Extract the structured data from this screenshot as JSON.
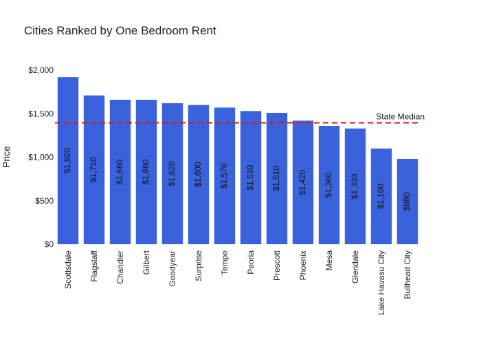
{
  "chart_data": {
    "type": "bar",
    "title": "Cities Ranked by One Bedroom Rent",
    "xlabel": "",
    "ylabel": "Price",
    "categories": [
      "Scottsdale",
      "Flagstaff",
      "Chandler",
      "Gilbert",
      "Goodyear",
      "Surprise",
      "Tempe",
      "Peoria",
      "Prescott",
      "Phoenix",
      "Mesa",
      "Glendale",
      "Lake Havasu City",
      "Bullhead City"
    ],
    "values": [
      1920,
      1710,
      1660,
      1660,
      1620,
      1600,
      1570,
      1530,
      1510,
      1420,
      1360,
      1330,
      1100,
      980
    ],
    "value_labels": [
      "$1,920",
      "$1,710",
      "$1,660",
      "$1,660",
      "$1,620",
      "$1,600",
      "$1,570",
      "$1,530",
      "$1,510",
      "$1,420",
      "$1,360",
      "$1,330",
      "$1,100",
      "$980"
    ],
    "ylim": [
      0,
      2000
    ],
    "yticks": [
      0,
      500,
      1000,
      1500,
      2000
    ],
    "ytick_labels": [
      "$0",
      "$500",
      "$1,000",
      "$1,500",
      "$2,000"
    ],
    "bar_color": "#3b62dd",
    "reference_line": {
      "label": "State Median",
      "value": 1395,
      "color": "#dd1111",
      "style": "dashed"
    },
    "grid": false,
    "legend": "none"
  }
}
